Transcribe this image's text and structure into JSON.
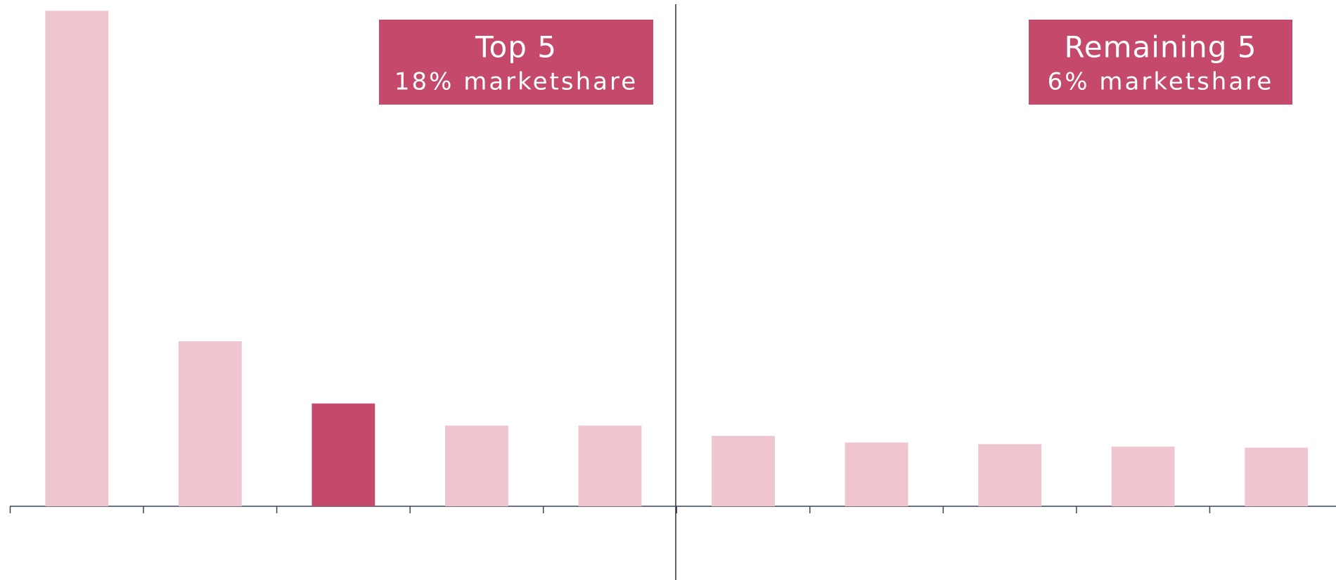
{
  "chart_data": {
    "type": "bar",
    "values": [
      9.64,
      3.21,
      2.0,
      1.57,
      1.57,
      1.37,
      1.24,
      1.21,
      1.16,
      1.14
    ],
    "colors": [
      "#efc6d0",
      "#efc6d0",
      "#c4496b",
      "#efc6d0",
      "#efc6d0",
      "#efc6d0",
      "#efc6d0",
      "#efc6d0",
      "#efc6d0",
      "#efc6d0"
    ],
    "ylim": [
      0,
      9.85
    ],
    "annotations": [
      {
        "title": "Top 5",
        "text": "18% marketshare",
        "color": "#c4496b"
      },
      {
        "title": "Remaining 5",
        "text": "6% marketshare",
        "color": "#c4496b"
      }
    ]
  }
}
